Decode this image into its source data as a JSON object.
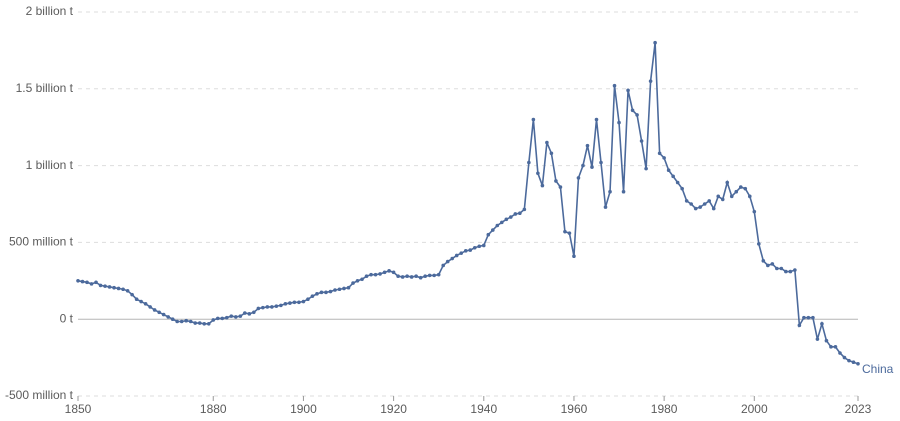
{
  "chart_data": {
    "type": "line",
    "x": [
      1850,
      1851,
      1852,
      1853,
      1854,
      1855,
      1856,
      1857,
      1858,
      1859,
      1860,
      1861,
      1862,
      1863,
      1864,
      1865,
      1866,
      1867,
      1868,
      1869,
      1870,
      1871,
      1872,
      1873,
      1874,
      1875,
      1876,
      1877,
      1878,
      1879,
      1880,
      1881,
      1882,
      1883,
      1884,
      1885,
      1886,
      1887,
      1888,
      1889,
      1890,
      1891,
      1892,
      1893,
      1894,
      1895,
      1896,
      1897,
      1898,
      1899,
      1900,
      1901,
      1902,
      1903,
      1904,
      1905,
      1906,
      1907,
      1908,
      1909,
      1910,
      1911,
      1912,
      1913,
      1914,
      1915,
      1916,
      1917,
      1918,
      1919,
      1920,
      1921,
      1922,
      1923,
      1924,
      1925,
      1926,
      1927,
      1928,
      1929,
      1930,
      1931,
      1932,
      1933,
      1934,
      1935,
      1936,
      1937,
      1938,
      1939,
      1940,
      1941,
      1942,
      1943,
      1944,
      1945,
      1946,
      1947,
      1948,
      1949,
      1950,
      1951,
      1952,
      1953,
      1954,
      1955,
      1956,
      1957,
      1958,
      1959,
      1960,
      1961,
      1962,
      1963,
      1964,
      1965,
      1966,
      1967,
      1968,
      1969,
      1970,
      1971,
      1972,
      1973,
      1974,
      1975,
      1976,
      1977,
      1978,
      1979,
      1980,
      1981,
      1982,
      1983,
      1984,
      1985,
      1986,
      1987,
      1988,
      1989,
      1990,
      1991,
      1992,
      1993,
      1994,
      1995,
      1996,
      1997,
      1998,
      1999,
      2000,
      2001,
      2002,
      2003,
      2004,
      2005,
      2006,
      2007,
      2008,
      2009,
      2010,
      2011,
      2012,
      2013,
      2014,
      2015,
      2016,
      2017,
      2018,
      2019,
      2020,
      2021,
      2022,
      2023
    ],
    "series": [
      {
        "name": "China",
        "color": "#4c6a9c",
        "values": [
          250000000,
          245000000,
          240000000,
          230000000,
          240000000,
          220000000,
          215000000,
          210000000,
          205000000,
          200000000,
          195000000,
          185000000,
          160000000,
          130000000,
          115000000,
          100000000,
          80000000,
          60000000,
          45000000,
          30000000,
          15000000,
          0,
          -15000000,
          -15000000,
          -10000000,
          -15000000,
          -25000000,
          -25000000,
          -30000000,
          -30000000,
          -5000000,
          5000000,
          5000000,
          10000000,
          20000000,
          15000000,
          20000000,
          40000000,
          35000000,
          45000000,
          70000000,
          75000000,
          80000000,
          80000000,
          85000000,
          90000000,
          100000000,
          105000000,
          110000000,
          110000000,
          115000000,
          130000000,
          150000000,
          165000000,
          175000000,
          175000000,
          180000000,
          190000000,
          195000000,
          200000000,
          205000000,
          235000000,
          250000000,
          260000000,
          280000000,
          290000000,
          290000000,
          295000000,
          305000000,
          315000000,
          305000000,
          280000000,
          275000000,
          280000000,
          275000000,
          280000000,
          270000000,
          280000000,
          285000000,
          285000000,
          290000000,
          350000000,
          375000000,
          395000000,
          415000000,
          430000000,
          445000000,
          450000000,
          465000000,
          475000000,
          480000000,
          550000000,
          580000000,
          610000000,
          630000000,
          650000000,
          665000000,
          685000000,
          690000000,
          715000000,
          1020000000,
          1300000000,
          950000000,
          870000000,
          1150000000,
          1080000000,
          900000000,
          860000000,
          570000000,
          560000000,
          410000000,
          920000000,
          1000000000,
          1130000000,
          990000000,
          1300000000,
          1020000000,
          730000000,
          830000000,
          1520000000,
          1280000000,
          830000000,
          1490000000,
          1360000000,
          1330000000,
          1160000000,
          980000000,
          1550000000,
          1800000000,
          1080000000,
          1050000000,
          970000000,
          930000000,
          890000000,
          850000000,
          770000000,
          750000000,
          720000000,
          730000000,
          750000000,
          770000000,
          720000000,
          800000000,
          780000000,
          890000000,
          800000000,
          830000000,
          860000000,
          850000000,
          800000000,
          700000000,
          490000000,
          380000000,
          350000000,
          360000000,
          330000000,
          330000000,
          310000000,
          310000000,
          320000000,
          -40000000,
          10000000,
          10000000,
          10000000,
          -130000000,
          -30000000,
          -140000000,
          -180000000,
          -180000000,
          -220000000,
          -250000000,
          -270000000,
          -280000000,
          -290000000
        ]
      }
    ],
    "xlim": [
      1850,
      2023
    ],
    "xticks": [
      1850,
      1880,
      1900,
      1920,
      1940,
      1960,
      1980,
      2000,
      2023
    ],
    "ylim": [
      -500000000,
      2000000000
    ],
    "yticks": [
      {
        "value": -500000000,
        "label": "-500 million t"
      },
      {
        "value": 0,
        "label": "0 t"
      },
      {
        "value": 500000000,
        "label": "500 million t"
      },
      {
        "value": 1000000000,
        "label": "1 billion t"
      },
      {
        "value": 1500000000,
        "label": "1.5 billion t"
      },
      {
        "value": 2000000000,
        "label": "2 billion t"
      }
    ],
    "grid": true
  }
}
